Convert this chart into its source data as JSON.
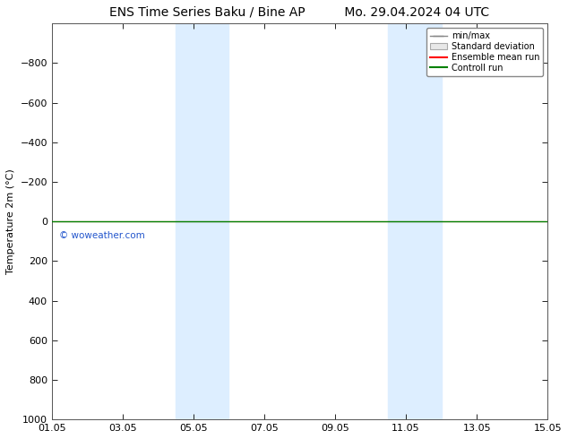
{
  "title_left": "ENS Time Series Baku / Bine AP",
  "title_right": "Mo. 29.04.2024 04 UTC",
  "ylabel": "Temperature 2m (°C)",
  "ylim_bottom": 1000,
  "ylim_top": -1000,
  "yticks": [
    -800,
    -600,
    -400,
    -200,
    0,
    200,
    400,
    600,
    800,
    1000
  ],
  "xtick_labels": [
    "01.05",
    "03.05",
    "05.05",
    "07.05",
    "09.05",
    "11.05",
    "13.05",
    "15.05"
  ],
  "xtick_positions": [
    1,
    3,
    5,
    7,
    9,
    11,
    13,
    15
  ],
  "xlim": [
    1,
    15
  ],
  "shaded_bands": [
    {
      "x_start": 4.5,
      "x_end": 6.0
    },
    {
      "x_start": 10.5,
      "x_end": 12.0
    }
  ],
  "shade_color": "#ddeeff",
  "control_run_color": "#008000",
  "ensemble_mean_color": "#ff0000",
  "minmax_color": "#888888",
  "stddev_color": "#cccccc",
  "watermark": "© woweather.com",
  "watermark_color": "#2255cc",
  "legend_labels": [
    "min/max",
    "Standard deviation",
    "Ensemble mean run",
    "Controll run"
  ],
  "legend_colors": [
    "#888888",
    "#cccccc",
    "#ff0000",
    "#008000"
  ],
  "background_color": "#ffffff",
  "title_fontsize": 10,
  "axis_fontsize": 8,
  "tick_fontsize": 8
}
